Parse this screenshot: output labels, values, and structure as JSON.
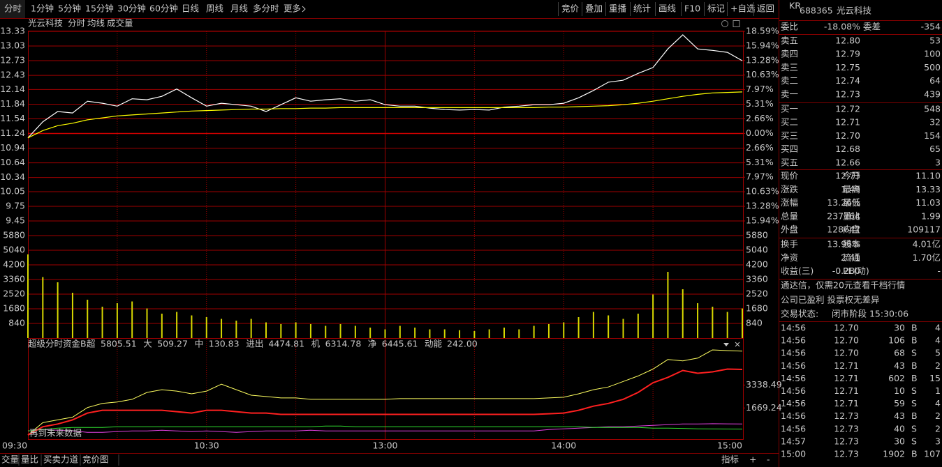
{
  "toolbar": {
    "left": [
      "分时",
      "1分钟",
      "5分钟",
      "15分钟",
      "30分钟",
      "60分钟",
      "日线",
      "周线",
      "月线",
      "多分时",
      "更多"
    ],
    "right": [
      "竞价",
      "叠加",
      "重播",
      "统计",
      "画线",
      "F10",
      "标记",
      "+自选",
      "返回"
    ]
  },
  "chart_data": [
    {
      "type": "line",
      "title": "光云科技",
      "categories": [
        "09:30",
        null,
        null,
        null,
        null,
        null,
        null,
        null,
        null,
        null,
        null,
        null,
        "10:30",
        null,
        null,
        null,
        null,
        null,
        null,
        null,
        null,
        null,
        null,
        null,
        "13:00",
        null,
        null,
        null,
        null,
        null,
        null,
        null,
        null,
        null,
        null,
        null,
        "14:00",
        null,
        null,
        null,
        null,
        null,
        null,
        null,
        null,
        null,
        null,
        null,
        "15:00"
      ],
      "series": [
        {
          "name": "分时",
          "color": "#ffffff",
          "values": [
            11.15,
            11.48,
            11.69,
            11.66,
            11.9,
            11.86,
            11.8,
            11.95,
            11.93,
            12.0,
            12.15,
            11.97,
            11.8,
            11.86,
            11.83,
            11.8,
            11.69,
            11.83,
            11.97,
            11.9,
            11.93,
            11.95,
            11.9,
            11.93,
            11.83,
            11.8,
            11.8,
            11.76,
            11.73,
            11.72,
            11.73,
            11.72,
            11.78,
            11.8,
            11.83,
            11.83,
            11.86,
            11.97,
            12.12,
            12.29,
            12.33,
            12.47,
            12.59,
            12.97,
            13.26,
            12.97,
            12.94,
            12.9,
            12.73
          ]
        },
        {
          "name": "均线",
          "color": "#ffff00",
          "values": [
            11.15,
            11.3,
            11.4,
            11.45,
            11.52,
            11.56,
            11.6,
            11.62,
            11.64,
            11.66,
            11.68,
            11.7,
            11.71,
            11.72,
            11.73,
            11.74,
            11.74,
            11.75,
            11.75,
            11.76,
            11.76,
            11.77,
            11.77,
            11.77,
            11.77,
            11.77,
            11.77,
            11.77,
            11.77,
            11.77,
            11.77,
            11.77,
            11.77,
            11.77,
            11.77,
            11.78,
            11.78,
            11.79,
            11.8,
            11.81,
            11.83,
            11.86,
            11.9,
            11.95,
            12.0,
            12.04,
            12.07,
            12.08,
            12.09
          ]
        }
      ],
      "ylim": [
        9.45,
        13.33
      ],
      "yticks": [
        13.33,
        13.03,
        12.73,
        12.43,
        12.14,
        11.84,
        11.54,
        11.24,
        10.94,
        10.64,
        10.34,
        10.05,
        9.75,
        9.45
      ],
      "y2lim": [
        -15.94,
        18.59
      ],
      "y2ticks": [
        {
          "value": 18.59,
          "label": "18.59%"
        },
        {
          "value": 15.94,
          "label": "15.94%"
        },
        {
          "value": 13.28,
          "label": "13.28%"
        },
        {
          "value": 10.63,
          "label": "10.63%"
        },
        {
          "value": 7.97,
          "label": "7.97%"
        },
        {
          "value": 5.31,
          "label": "5.31%"
        },
        {
          "value": 2.66,
          "label": "2.66%"
        },
        {
          "value": 0,
          "label": "0.00%"
        },
        {
          "value": -2.66,
          "label": "2.66%"
        },
        {
          "value": -5.31,
          "label": "5.31%"
        },
        {
          "value": -7.97,
          "label": "7.97%"
        },
        {
          "value": -10.63,
          "label": "10.63%"
        },
        {
          "value": -13.28,
          "label": "13.28%"
        },
        {
          "value": -15.94,
          "label": "15.94%"
        }
      ],
      "grid": true
    },
    {
      "type": "bar",
      "title": "成交量",
      "color": "#d8d800",
      "values": [
        4800,
        3500,
        3200,
        2600,
        2200,
        1800,
        2000,
        2100,
        1700,
        1400,
        1500,
        1300,
        1200,
        1100,
        1000,
        1100,
        900,
        800,
        900,
        800,
        700,
        800,
        700,
        600,
        500,
        700,
        600,
        500,
        500,
        450,
        400,
        500,
        600,
        500,
        700,
        800,
        900,
        1200,
        1500,
        1300,
        1100,
        1400,
        2500,
        3800,
        2800,
        2000,
        1800,
        1500,
        1700
      ],
      "ylim": [
        0,
        5880
      ],
      "yticks": [
        840,
        1680,
        2520,
        3360,
        4200,
        5040,
        5880
      ],
      "grid": true
    },
    {
      "type": "line",
      "title": "超级分时资金B",
      "series": [
        {
          "name": "超",
          "color": "#ffff60",
          "values": [
            -300,
            600,
            800,
            1000,
            1700,
            2000,
            2100,
            2300,
            2800,
            3000,
            2900,
            2700,
            2900,
            3400,
            3000,
            2600,
            2500,
            2400,
            2400,
            2300,
            2300,
            2300,
            2300,
            2300,
            2300,
            2350,
            2350,
            2350,
            2350,
            2350,
            2350,
            2350,
            2350,
            2350,
            2350,
            2400,
            2450,
            2700,
            3000,
            3200,
            3600,
            4000,
            4500,
            5200,
            5100,
            5300,
            5900,
            5850,
            5805.51
          ]
        },
        {
          "name": "大",
          "color": "#e040e0",
          "values": [
            0,
            100,
            50,
            0,
            -100,
            -100,
            -50,
            0,
            0,
            50,
            0,
            -50,
            0,
            -50,
            -100,
            -50,
            0,
            0,
            0,
            50,
            0,
            0,
            0,
            0,
            0,
            0,
            0,
            0,
            0,
            0,
            0,
            0,
            0,
            0,
            0,
            100,
            150,
            200,
            250,
            300,
            300,
            350,
            400,
            450,
            500,
            500,
            520,
            510,
            509.27
          ]
        },
        {
          "name": "中",
          "color": "#30e030",
          "values": [
            0,
            100,
            200,
            250,
            250,
            250,
            300,
            300,
            300,
            300,
            300,
            300,
            300,
            300,
            300,
            300,
            300,
            300,
            300,
            300,
            350,
            350,
            300,
            300,
            300,
            300,
            300,
            300,
            300,
            300,
            300,
            300,
            300,
            300,
            300,
            300,
            300,
            300,
            250,
            250,
            250,
            250,
            200,
            200,
            180,
            150,
            140,
            135,
            130.83
          ]
        },
        {
          "name": "进出",
          "color": "#ff2020",
          "values": [
            -300,
            300,
            500,
            800,
            1300,
            1500,
            1500,
            1500,
            1500,
            1500,
            1400,
            1300,
            1500,
            1500,
            1400,
            1300,
            1300,
            1200,
            1200,
            1200,
            1200,
            1200,
            1200,
            1200,
            1200,
            1200,
            1200,
            1200,
            1200,
            1200,
            1200,
            1200,
            1200,
            1200,
            1200,
            1250,
            1300,
            1500,
            1800,
            2000,
            2300,
            2800,
            3500,
            3900,
            4400,
            4200,
            4300,
            4500,
            4474.81
          ]
        }
      ],
      "indicators": {
        "names": [
          "机",
          "净",
          "动能"
        ],
        "values": [
          6314.78,
          6445.61,
          242
        ],
        "value_labels": [
          "6314.78",
          "6445.61",
          "242.00"
        ],
        "colors": [
          "#ff4040",
          "#ffff60",
          "#ffffff"
        ]
      },
      "ylim": [
        -600,
        6000
      ],
      "yticks": [
        1669.24,
        3338.49
      ],
      "note": "再到未来数据"
    }
  ],
  "quote": {
    "tag": "KR",
    "code": "688365",
    "name": "光云科技",
    "wei": [
      "委比",
      "-18.08%",
      "委差",
      "-354"
    ],
    "asks": [
      [
        "卖五",
        "12.80",
        "53"
      ],
      [
        "卖四",
        "12.79",
        "100"
      ],
      [
        "卖三",
        "12.75",
        "500"
      ],
      [
        "卖二",
        "12.74",
        "64"
      ],
      [
        "卖一",
        "12.73",
        "439"
      ]
    ],
    "bids": [
      [
        "买一",
        "12.72",
        "548"
      ],
      [
        "买二",
        "12.71",
        "32"
      ],
      [
        "买三",
        "12.70",
        "154"
      ],
      [
        "买四",
        "12.68",
        "65"
      ],
      [
        "买五",
        "12.66",
        "3"
      ]
    ],
    "stats": [
      [
        "现价",
        "12.73",
        "今开",
        "11.10"
      ],
      [
        "涨跌",
        "1.49",
        "最高",
        "13.33"
      ],
      [
        "涨幅",
        "13.26%",
        "最低",
        "11.03"
      ],
      [
        "总量",
        "237764",
        "量比",
        "1.99"
      ],
      [
        "外盘",
        "128647",
        "内盘",
        "109117"
      ]
    ],
    "stats2": [
      [
        "换手",
        "13.96%",
        "股本",
        "4.01亿"
      ],
      [
        "净资",
        "2.41",
        "流通",
        "1.70亿"
      ],
      [
        "收益(三)",
        "-0.280",
        "PE(动)",
        "-"
      ]
    ],
    "notice": "通达信，仅需20元查看千档行情",
    "company": "公司已盈利 投票权无差异",
    "status_label": "交易状态:",
    "status": "闭市阶段 15:30:06",
    "trades": [
      [
        "14:56",
        "12.70",
        "30",
        "B",
        "4"
      ],
      [
        "14:56",
        "12.70",
        "106",
        "B",
        "4"
      ],
      [
        "14:56",
        "12.70",
        "68",
        "S",
        "5"
      ],
      [
        "14:56",
        "12.71",
        "43",
        "B",
        "2"
      ],
      [
        "14:56",
        "12.71",
        "602",
        "B",
        "15"
      ],
      [
        "14:56",
        "12.71",
        "10",
        "S",
        "1"
      ],
      [
        "14:56",
        "12.71",
        "59",
        "S",
        "4"
      ],
      [
        "14:56",
        "12.73",
        "43",
        "B",
        "2"
      ],
      [
        "14:56",
        "12.73",
        "40",
        "S",
        "2"
      ],
      [
        "14:57",
        "12.73",
        "30",
        "S",
        "3"
      ],
      [
        "15:00",
        "12.73",
        "1902",
        "B",
        "107"
      ]
    ]
  },
  "bottom_tabs": {
    "left": [
      "交量",
      "量比",
      "买卖力道",
      "竞价图"
    ],
    "right": [
      "指标",
      "+",
      "-"
    ]
  }
}
